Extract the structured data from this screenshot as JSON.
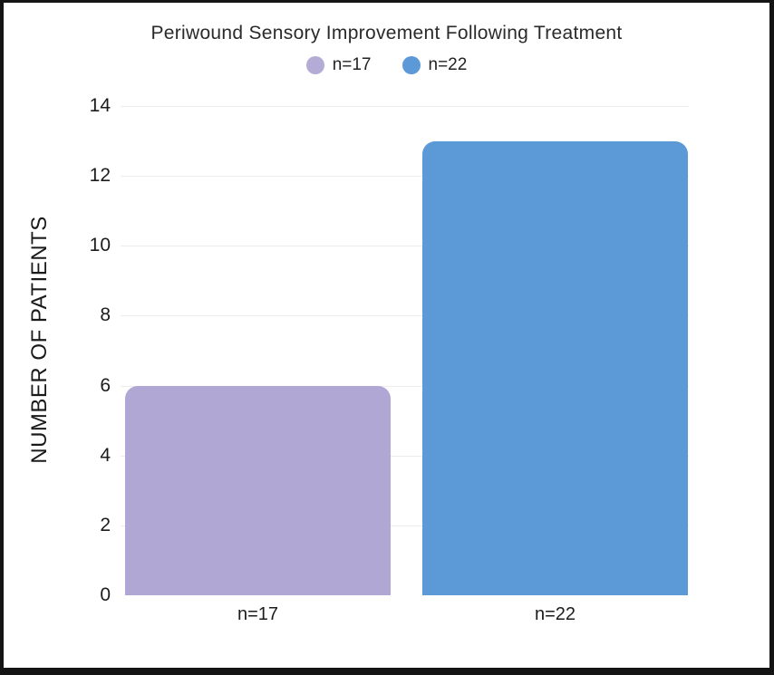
{
  "chart_data": {
    "type": "bar",
    "title": "Periwound Sensory Improvement Following Treatment",
    "xlabel": "",
    "ylabel": "NUMBER OF PATIENTS",
    "categories": [
      "n=17",
      "n=22"
    ],
    "values": [
      6,
      13
    ],
    "ylim": [
      0,
      14
    ],
    "yticks": [
      0,
      2,
      4,
      6,
      8,
      10,
      12,
      14
    ],
    "grid": true,
    "bar_colors": [
      "#b1a7d4",
      "#5b9ad6"
    ],
    "legend": {
      "position": "top-center",
      "entries": [
        {
          "label": "n=17",
          "color": "#b5abd7"
        },
        {
          "label": "n=22",
          "color": "#5b9ad6"
        }
      ]
    }
  },
  "colors": {
    "frame_border": "#141414",
    "background": "#ffffff",
    "gridline": "#ededed",
    "text": "#1c1c1c"
  }
}
